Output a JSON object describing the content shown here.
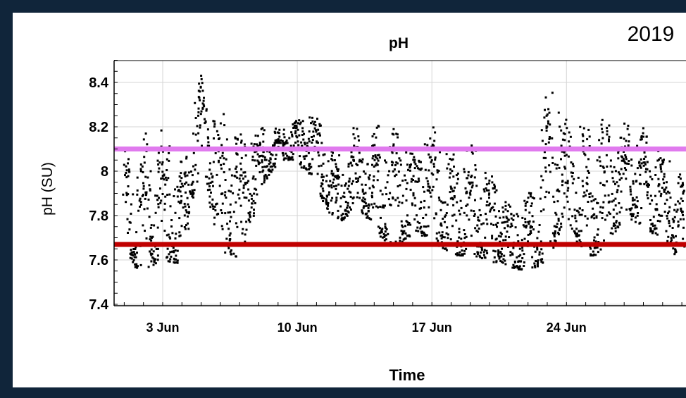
{
  "chart_data": {
    "type": "scatter",
    "title": "pH",
    "corner_label": "2019",
    "xlabel": "Time",
    "ylabel": "pH (SU)",
    "x_ticks": [
      "3 Jun",
      "10 Jun",
      "17 Jun",
      "24 Jun"
    ],
    "y_ticks": [
      "7.4",
      "7.6",
      "7.8",
      "8",
      "8.2",
      "8.4"
    ],
    "xlim": [
      "2019-06-01",
      "2019-07-01"
    ],
    "ylim": [
      7.4,
      8.5
    ],
    "grid": true,
    "reference_lines": [
      {
        "y": 8.1,
        "color": "#e07aee"
      },
      {
        "y": 7.67,
        "color": "#c00000"
      }
    ],
    "point_color": "#000000",
    "series": [
      {
        "x": [
          "2019-06-01",
          "2019-06-02",
          "2019-06-03",
          "2019-06-04",
          "2019-06-05",
          "2019-06-06",
          "2019-06-07",
          "2019-06-08",
          "2019-06-09",
          "2019-06-10",
          "2019-06-11",
          "2019-06-12",
          "2019-06-13",
          "2019-06-14",
          "2019-06-15",
          "2019-06-16",
          "2019-06-17",
          "2019-06-18",
          "2019-06-19",
          "2019-06-20",
          "2019-06-21",
          "2019-06-22",
          "2019-06-23",
          "2019-06-24",
          "2019-06-25",
          "2019-06-26",
          "2019-06-27",
          "2019-06-28",
          "2019-06-29",
          "2019-06-30"
        ],
        "y_low": [
          7.6,
          7.55,
          7.6,
          7.58,
          8.1,
          7.65,
          7.6,
          7.9,
          8.05,
          8.05,
          7.95,
          7.75,
          7.85,
          7.75,
          7.65,
          7.72,
          7.7,
          7.62,
          7.62,
          7.6,
          7.57,
          7.55,
          7.6,
          7.8,
          7.6,
          7.65,
          7.8,
          7.75,
          7.7,
          7.6
        ],
        "y_high": [
          8.1,
          8.2,
          8.2,
          8.05,
          8.45,
          8.3,
          8.2,
          8.2,
          8.2,
          8.25,
          8.25,
          8.05,
          8.2,
          8.2,
          8.28,
          8.1,
          8.25,
          8.08,
          8.15,
          8.0,
          7.85,
          7.88,
          8.4,
          8.3,
          8.2,
          8.25,
          8.22,
          8.2,
          8.1,
          8.0
        ]
      }
    ]
  }
}
